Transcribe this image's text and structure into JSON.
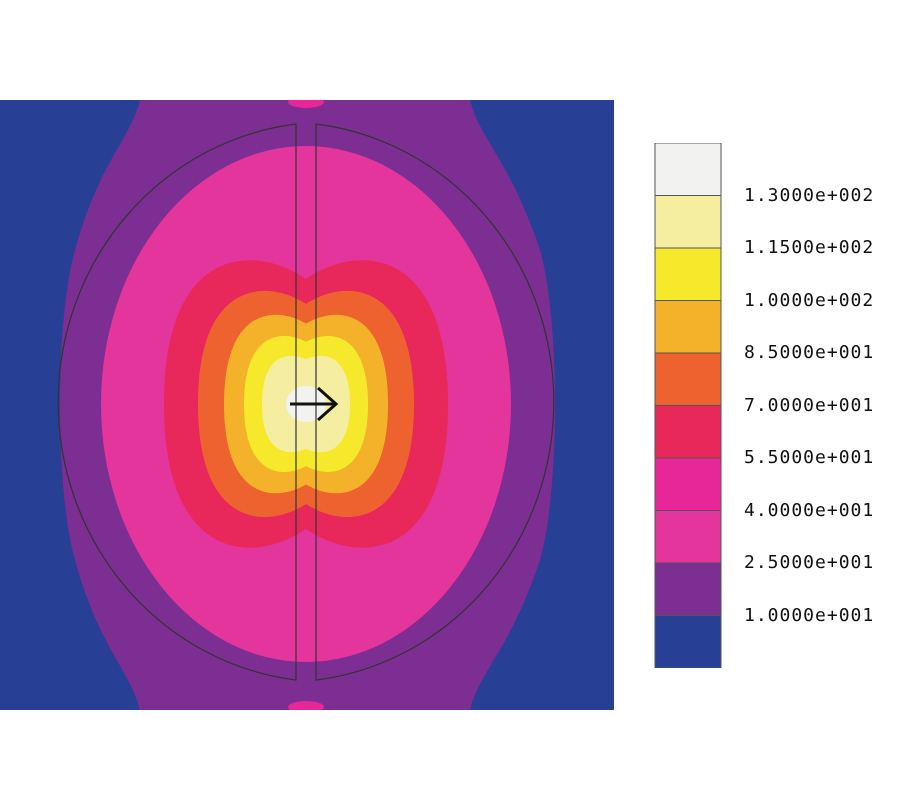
{
  "chart_data": {
    "type": "heatmap",
    "title": "",
    "xlabel": "",
    "ylabel": "",
    "levels": [
      10,
      25,
      40,
      55,
      70,
      85,
      100,
      115,
      130
    ],
    "legend_labels": [
      "1.3000e+002",
      "1.1500e+002",
      "1.0000e+002",
      "8.5000e+001",
      "7.0000e+001",
      "5.5000e+001",
      "4.0000e+001",
      "2.5000e+001",
      "1.0000e+001"
    ],
    "band_colors": [
      "#f2f2f0",
      "#f5eea0",
      "#f6e92c",
      "#f4b12a",
      "#ee6230",
      "#e8275a",
      "#e72697",
      "#e3359b",
      "#7c2e93",
      "#283f96"
    ],
    "legend_placement": "right",
    "grid": false,
    "annotations": [
      "arrow pointing right at field maximum"
    ]
  }
}
